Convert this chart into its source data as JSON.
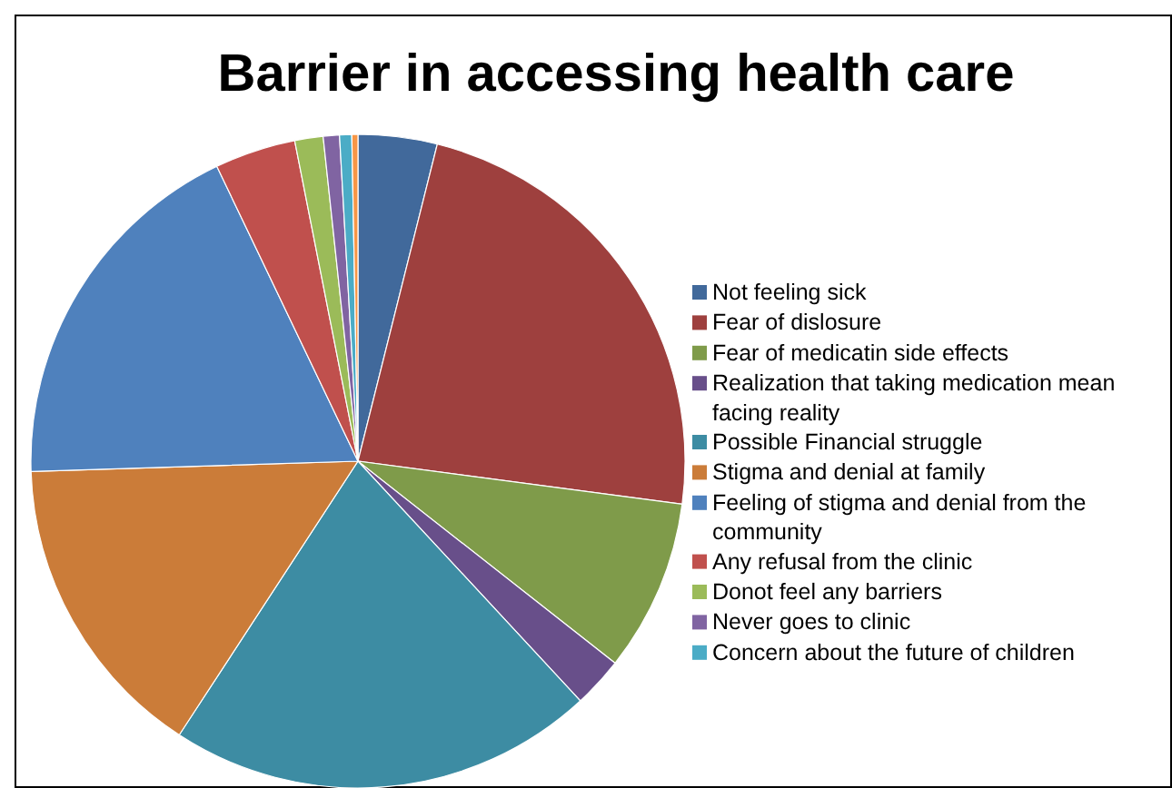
{
  "chart_data": {
    "type": "pie",
    "title": "Barrier in accessing health care",
    "categories": [
      "Not feeling sick",
      "Fear of dislosure",
      "Fear of medicatin side effects",
      "Realization that taking medication mean facing reality",
      "Possible Financial struggle",
      "Stigma and denial at family",
      "Feeling of stigma and denial from the community",
      "Any refusal from the clinic",
      "Donot feel any barriers",
      "Never goes to clinic",
      "Concern about the future of children",
      null
    ],
    "values": [
      3.9,
      23.2,
      8.5,
      2.5,
      21.1,
      15.3,
      18.4,
      4.0,
      1.4,
      0.8,
      0.6,
      0.3
    ],
    "colors": [
      "#41699b",
      "#9e403e",
      "#7f9b4a",
      "#684f8a",
      "#3d8ca3",
      "#cb7c39",
      "#4f81bd",
      "#c0504d",
      "#9bbb59",
      "#8064a2",
      "#4bacc6",
      "#f79646"
    ],
    "legend": "right"
  }
}
